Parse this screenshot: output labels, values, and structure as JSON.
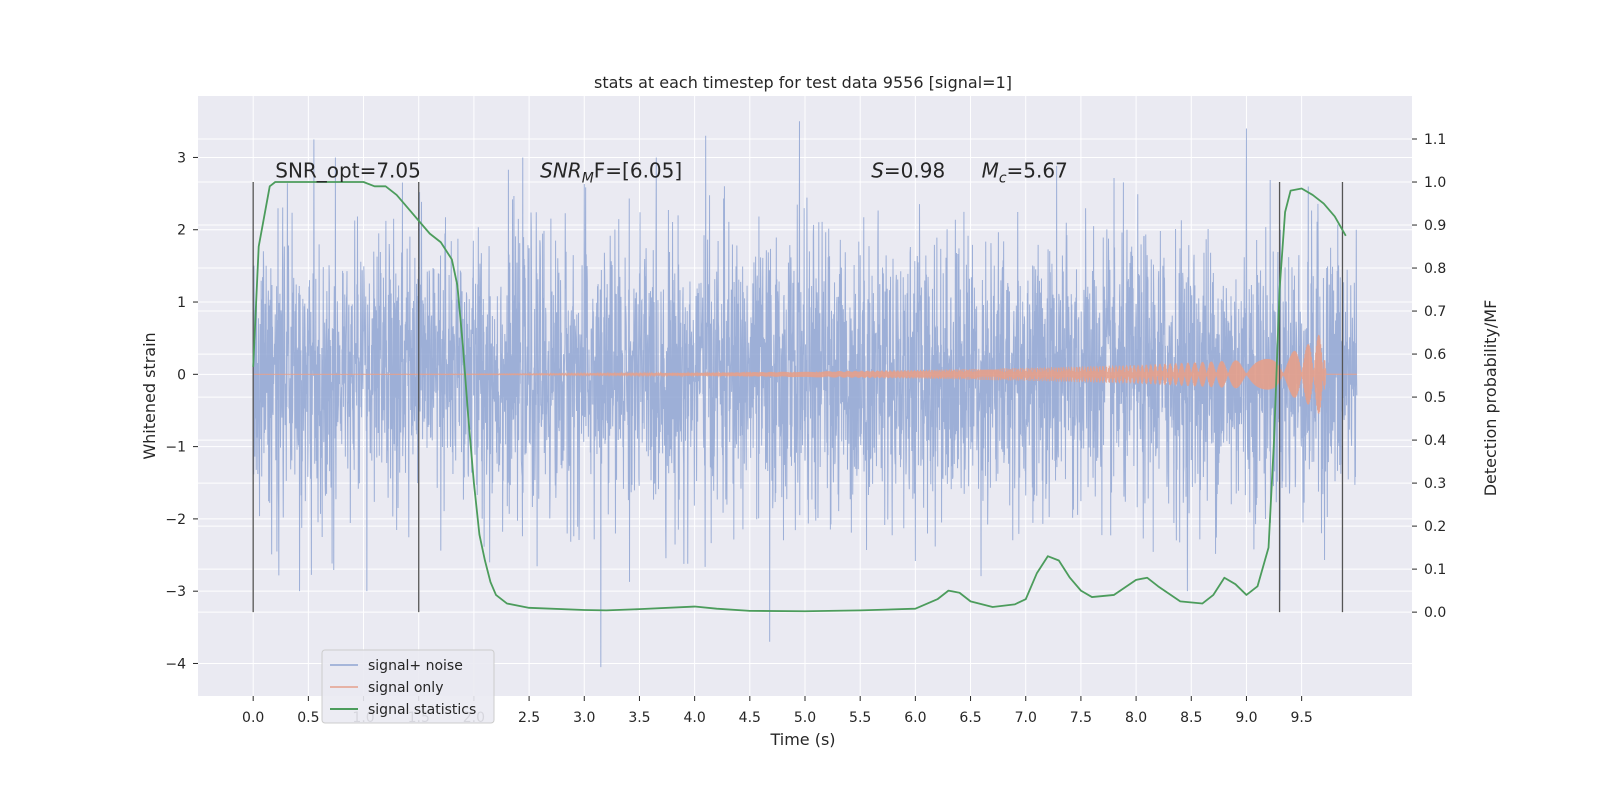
{
  "chart_data": {
    "type": "line",
    "title": "stats at each timestep for test data 9556 [signal=1]",
    "xlabel": "Time (s)",
    "ylabel": "Whitened strain",
    "y2label": "Detection probability/MF",
    "xlim": [
      -0.5,
      10.5
    ],
    "ylim": [
      -4.45,
      3.85
    ],
    "y2lim": [
      -0.195,
      1.2
    ],
    "x_ticks": [
      0.0,
      0.5,
      1.0,
      1.5,
      2.0,
      2.5,
      3.0,
      3.5,
      4.0,
      4.5,
      5.0,
      5.5,
      6.0,
      6.5,
      7.0,
      7.5,
      8.0,
      8.5,
      9.0,
      9.5
    ],
    "x_tick_labels": [
      "0.0",
      "0.5",
      "1.0",
      "1.5",
      "2.0",
      "2.5",
      "3.0",
      "3.5",
      "4.0",
      "4.5",
      "5.0",
      "5.5",
      "6.0",
      "6.5",
      "7.0",
      "7.5",
      "8.0",
      "8.5",
      "9.0",
      "9.5"
    ],
    "y_ticks": [
      -4,
      -3,
      -2,
      -1,
      0,
      1,
      2,
      3
    ],
    "y_tick_labels": [
      "−4",
      "−3",
      "−2",
      "−1",
      "0",
      "1",
      "2",
      "3"
    ],
    "y2_ticks": [
      0.0,
      0.1,
      0.2,
      0.3,
      0.4,
      0.5,
      0.6,
      0.7,
      0.8,
      0.9,
      1.0,
      1.1
    ],
    "y2_tick_labels": [
      "0.0",
      "0.1",
      "0.2",
      "0.3",
      "0.4",
      "0.5",
      "0.6",
      "0.7",
      "0.8",
      "0.9",
      "1.0",
      "1.1"
    ],
    "grid": true,
    "legend_position": "lower-left",
    "annotations": [
      {
        "id": "snr-opt",
        "x": 0.2,
        "y2": 1.01,
        "text": "SNR_opt=7.05"
      },
      {
        "id": "snr-mf",
        "x": 2.6,
        "y2": 1.01,
        "text": "SNR",
        "sub": "M",
        "after": "F=[6.05]"
      },
      {
        "id": "s-stat",
        "x": 5.6,
        "y2": 1.01,
        "text": "S",
        "after": "=0.98"
      },
      {
        "id": "mc",
        "x": 6.6,
        "y2": 1.01,
        "text": "M",
        "sub": "c",
        "after": "=5.67"
      }
    ],
    "vertical_lines": [
      {
        "x": 0.0,
        "y2_from": 0.0,
        "y2_to": 1.0
      },
      {
        "x": 1.5,
        "y2_from": 0.0,
        "y2_to": 1.0
      },
      {
        "x": 9.3,
        "y2_from": 0.0,
        "y2_to": 1.0
      },
      {
        "x": 9.87,
        "y2_from": 0.0,
        "y2_to": 1.0
      }
    ],
    "series": [
      {
        "name": "signal+ noise",
        "color": "#8fa5d2",
        "description_of_values": "whitened strain noise, roughly ±1.5 with spikes to ±3.5, t from 0 to 10 s",
        "t_range": [
          0.0,
          10.0
        ],
        "amplitude": 1.5,
        "peaks": [
          [
            0.55,
            3.25
          ],
          [
            3.15,
            -4.05
          ],
          [
            4.68,
            -3.7
          ],
          [
            4.95,
            3.5
          ],
          [
            9.0,
            3.4
          ],
          [
            4.1,
            3.3
          ]
        ]
      },
      {
        "name": "signal only",
        "color": "#e5a08b",
        "description_of_values": "chirp signal with growing amplitude ending near t=9.7 s",
        "t_range": [
          0.0,
          10.0
        ],
        "envelope": [
          [
            0.0,
            0.0
          ],
          [
            2.0,
            0.005
          ],
          [
            4.0,
            0.02
          ],
          [
            5.0,
            0.04
          ],
          [
            6.0,
            0.06
          ],
          [
            7.0,
            0.09
          ],
          [
            8.0,
            0.13
          ],
          [
            9.0,
            0.2
          ],
          [
            9.4,
            0.3
          ],
          [
            9.6,
            0.45
          ],
          [
            9.7,
            0.63
          ],
          [
            9.72,
            0.0
          ],
          [
            10.0,
            0.0
          ]
        ]
      },
      {
        "name": "signal statistics",
        "color": "#4c9c5c",
        "x": [
          0.0,
          0.05,
          0.1,
          0.15,
          0.2,
          0.3,
          0.5,
          0.8,
          1.0,
          1.1,
          1.2,
          1.3,
          1.4,
          1.5,
          1.6,
          1.7,
          1.8,
          1.85,
          1.9,
          1.95,
          2.0,
          2.05,
          2.1,
          2.15,
          2.2,
          2.3,
          2.5,
          3.0,
          3.2,
          3.5,
          4.0,
          4.2,
          4.5,
          5.0,
          5.5,
          6.0,
          6.2,
          6.3,
          6.4,
          6.5,
          6.7,
          6.9,
          7.0,
          7.1,
          7.2,
          7.3,
          7.4,
          7.5,
          7.6,
          7.8,
          8.0,
          8.1,
          8.2,
          8.4,
          8.6,
          8.7,
          8.8,
          8.9,
          9.0,
          9.1,
          9.2,
          9.25,
          9.3,
          9.35,
          9.4,
          9.5,
          9.6,
          9.7,
          9.8,
          9.9
        ],
        "values": [
          0.57,
          0.85,
          0.92,
          0.99,
          1.0,
          1.0,
          1.0,
          1.0,
          1.0,
          0.99,
          0.99,
          0.97,
          0.94,
          0.91,
          0.88,
          0.86,
          0.82,
          0.76,
          0.62,
          0.45,
          0.3,
          0.18,
          0.12,
          0.07,
          0.04,
          0.02,
          0.01,
          0.005,
          0.004,
          0.007,
          0.013,
          0.008,
          0.003,
          0.002,
          0.004,
          0.008,
          0.03,
          0.05,
          0.045,
          0.025,
          0.012,
          0.018,
          0.03,
          0.09,
          0.13,
          0.12,
          0.08,
          0.05,
          0.035,
          0.04,
          0.075,
          0.08,
          0.06,
          0.025,
          0.02,
          0.04,
          0.08,
          0.065,
          0.04,
          0.06,
          0.15,
          0.4,
          0.75,
          0.93,
          0.98,
          0.985,
          0.97,
          0.95,
          0.92,
          0.875
        ]
      }
    ]
  }
}
